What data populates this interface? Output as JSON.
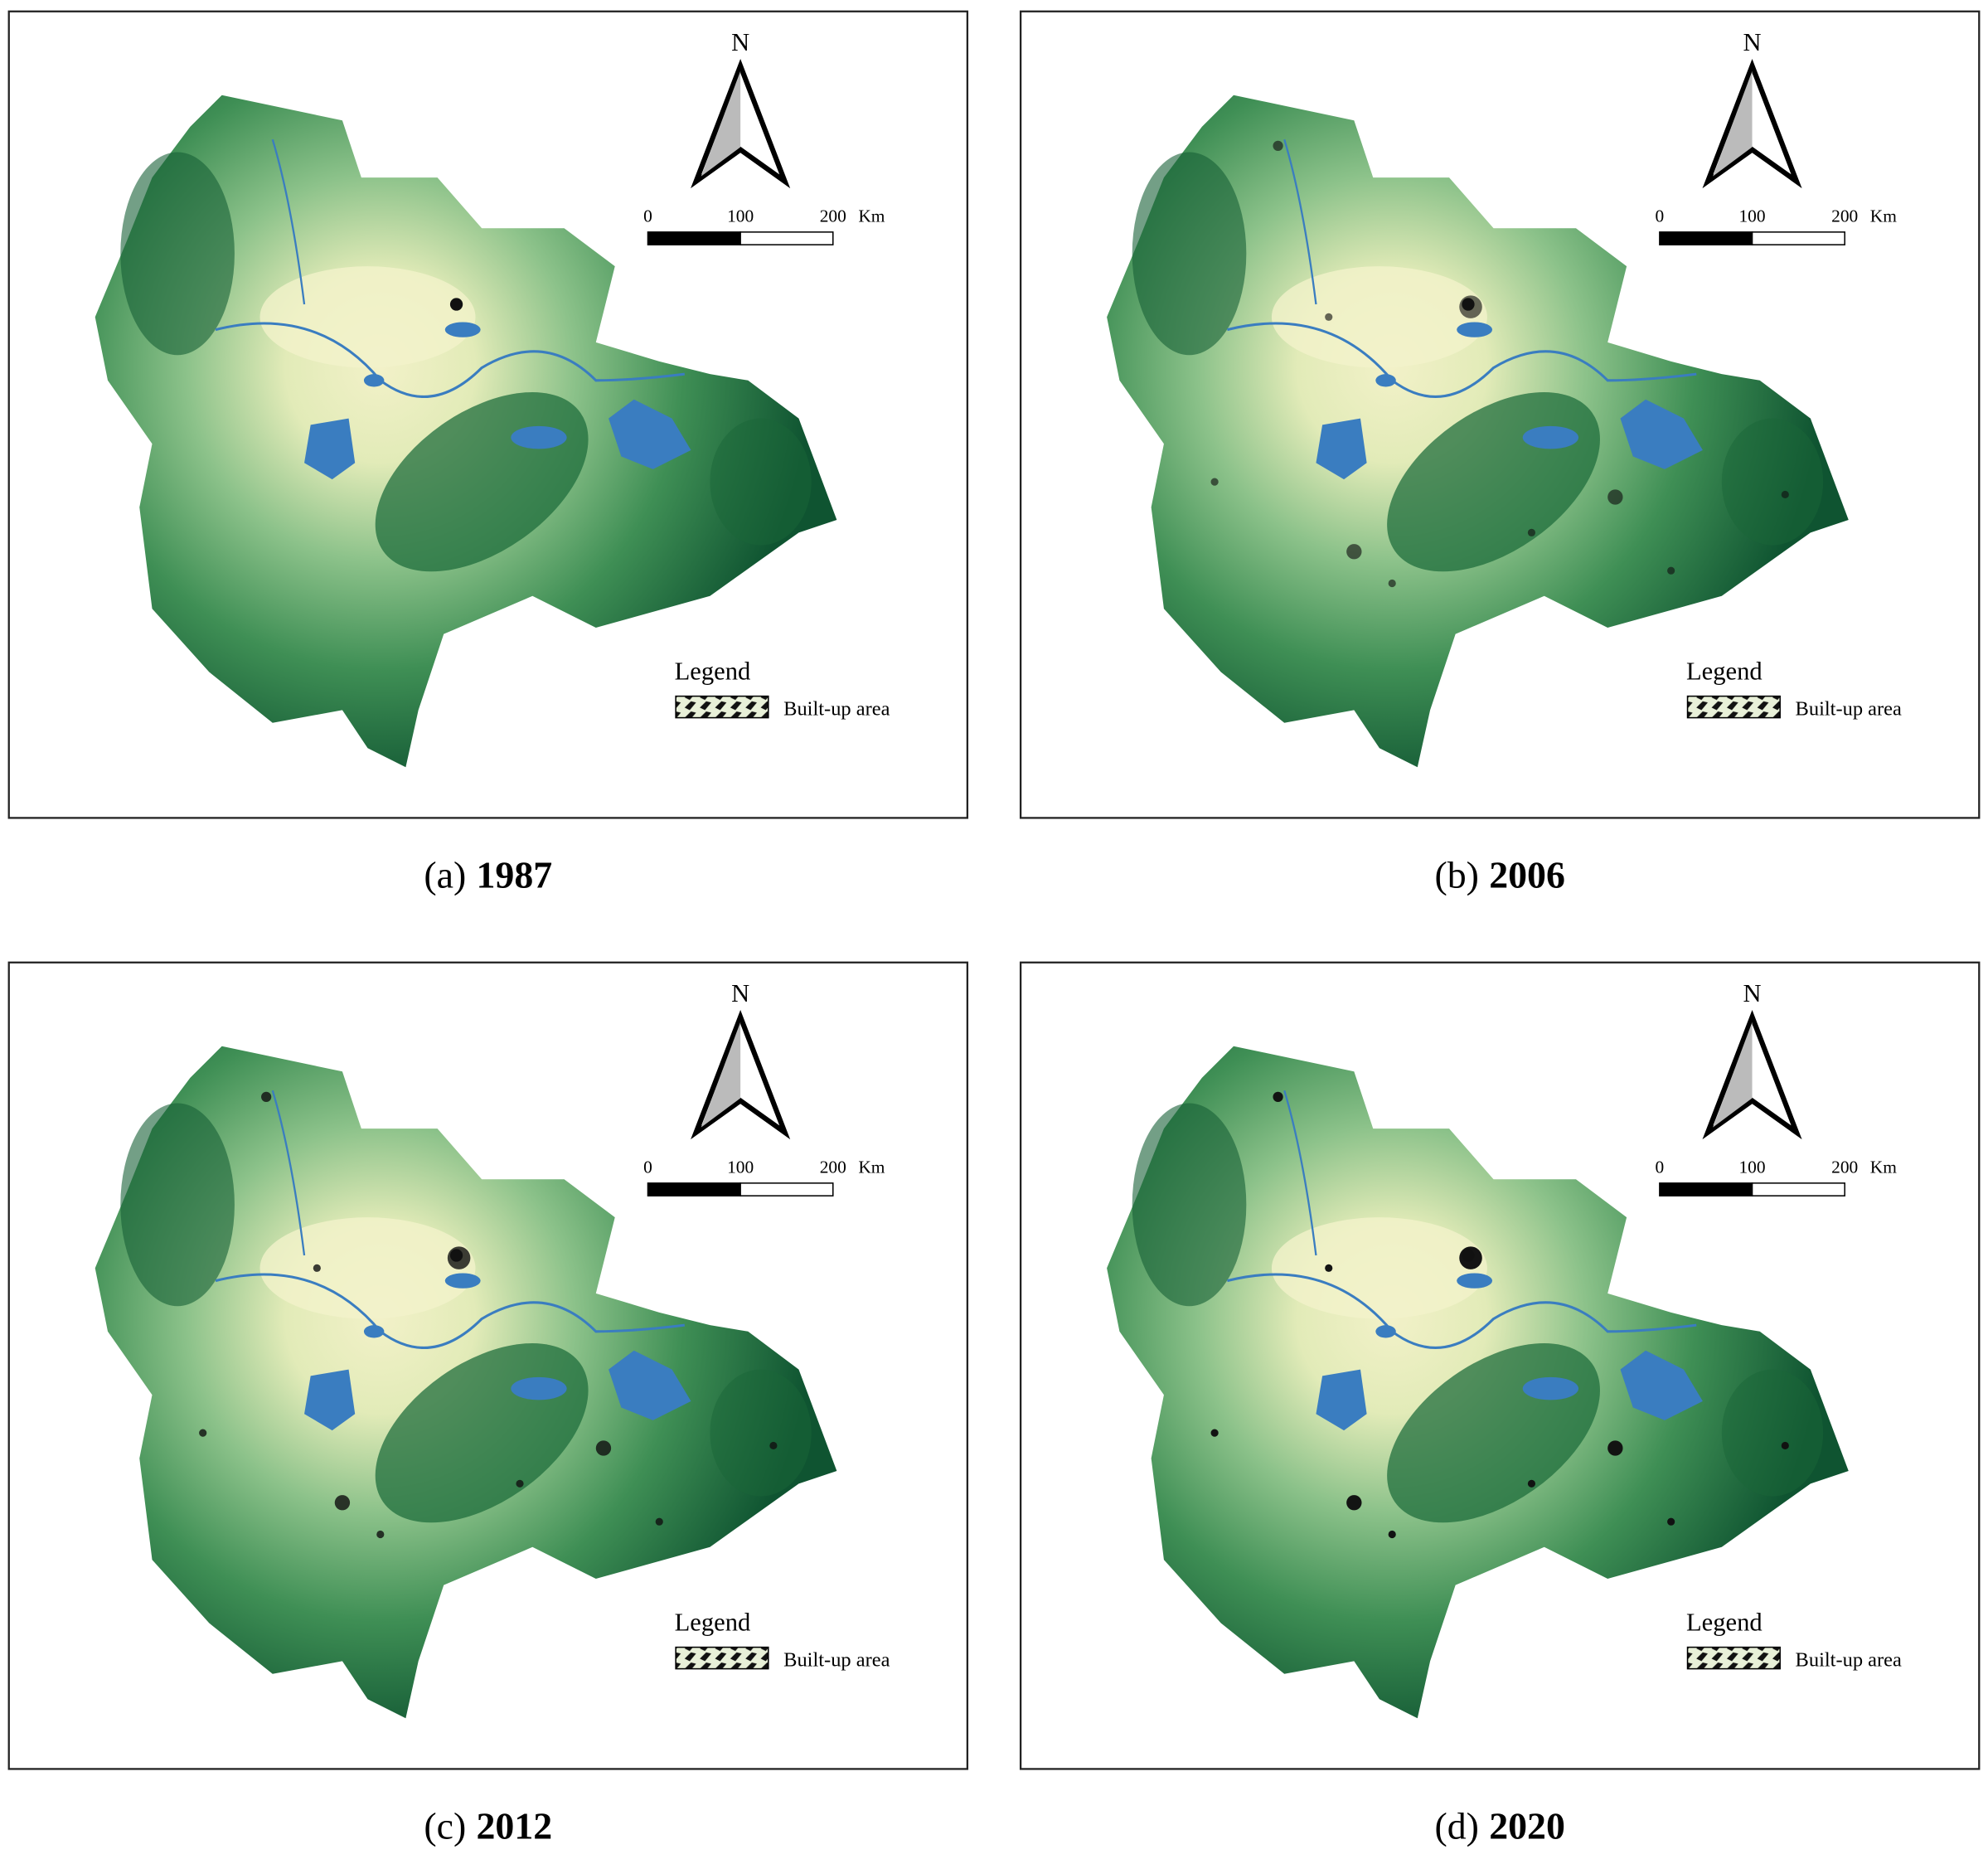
{
  "panels": [
    {
      "label": "(a)",
      "year": "1987"
    },
    {
      "label": "(b)",
      "year": "2006"
    },
    {
      "label": "(c)",
      "year": "2012"
    },
    {
      "label": "(d)",
      "year": "2020"
    }
  ],
  "map_text": {
    "north": "N",
    "scale": [
      "0",
      "100",
      "200"
    ],
    "unit": "Km",
    "legend_title": "Legend",
    "legend_item": "Built-up area"
  }
}
